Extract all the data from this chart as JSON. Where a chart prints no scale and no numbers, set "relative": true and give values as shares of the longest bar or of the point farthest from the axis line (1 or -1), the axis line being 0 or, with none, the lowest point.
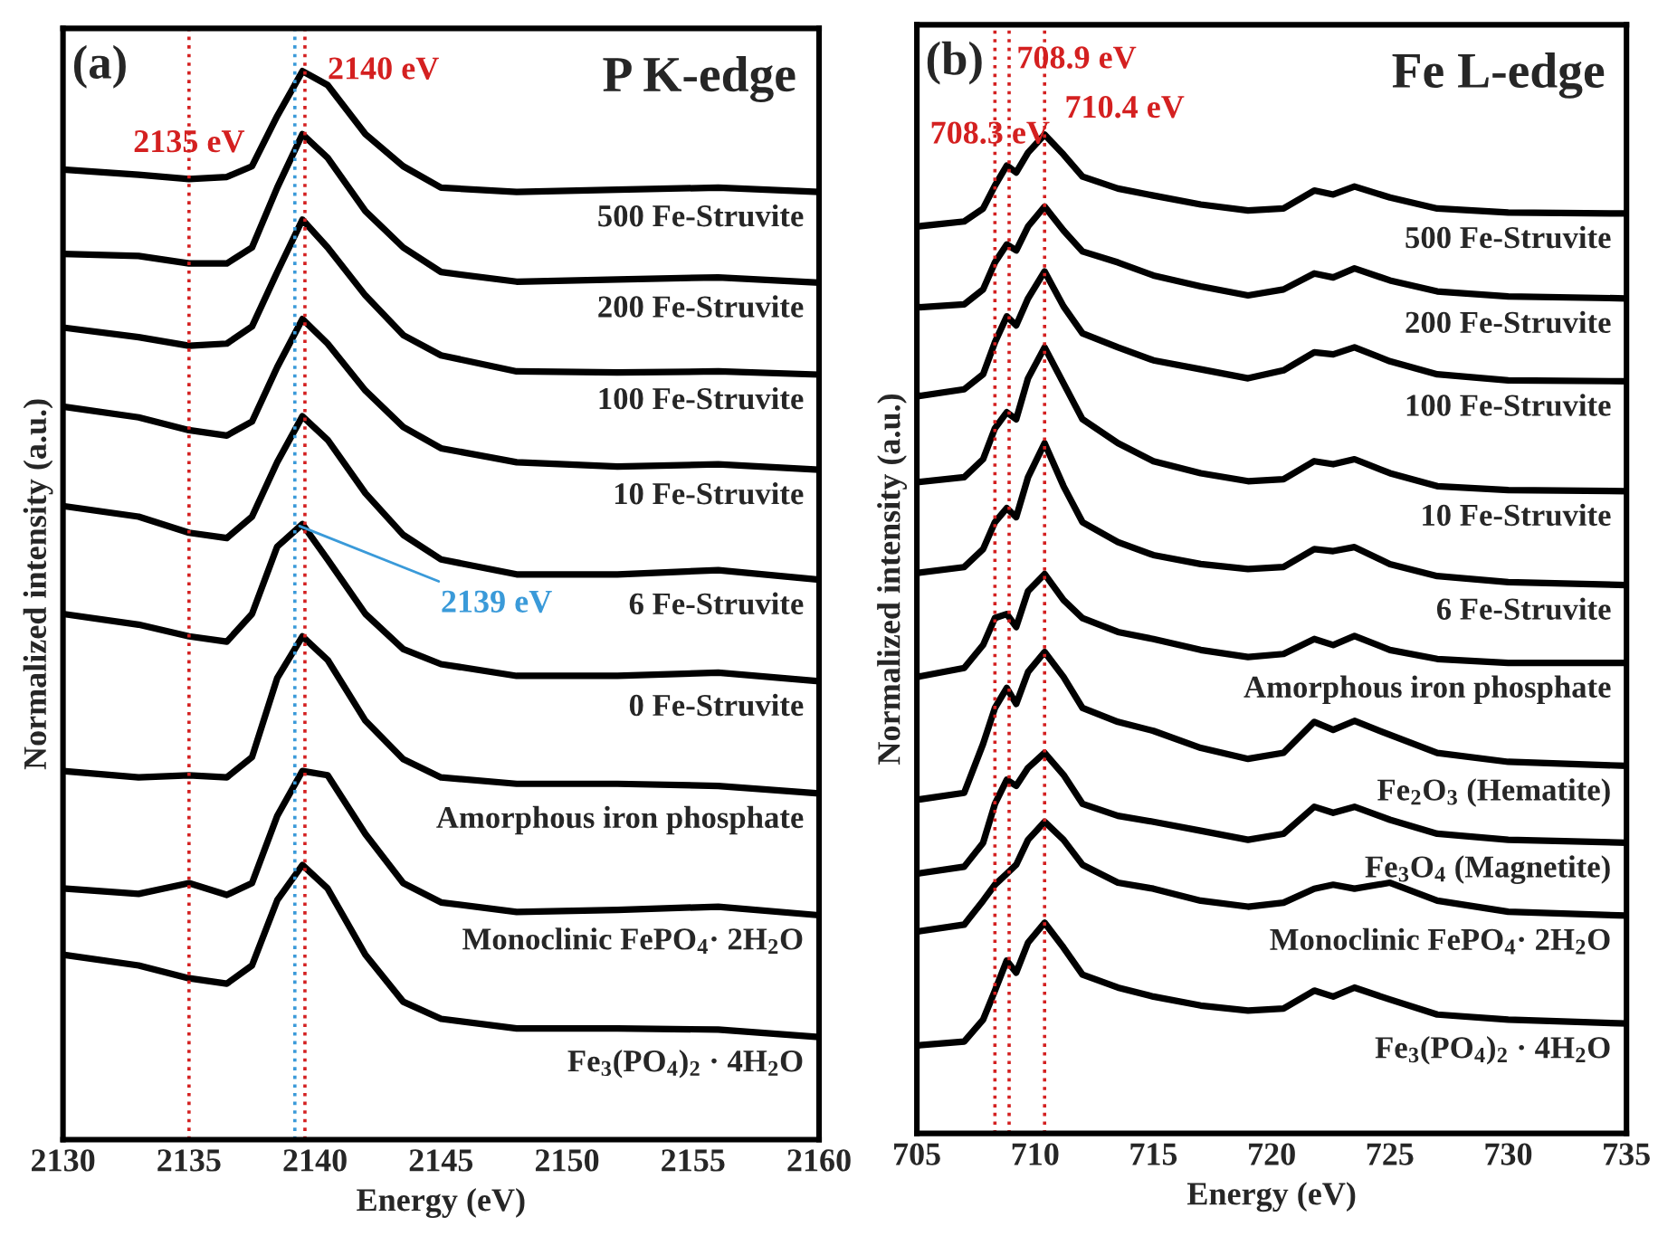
{
  "chart_data": [
    {
      "type": "line",
      "title": "P K-edge",
      "xlabel": "Energy (eV)",
      "ylabel": "Normalized intensity (a.u.)",
      "relative": true,
      "tick_labels": "x",
      "xlim": [
        2130,
        2160
      ],
      "xticks": [
        2130,
        2135,
        2140,
        2145,
        2150,
        2155,
        2160
      ],
      "x": [
        2130,
        2133,
        2135,
        2136.5,
        2137.5,
        2138.5,
        2139.5,
        2140.5,
        2142,
        2143.5,
        2145,
        2148,
        2152,
        2156,
        2160
      ],
      "series": [
        {
          "name": "500 Fe-Struvite",
          "color": "#000000",
          "values": [
            0.908,
            0.903,
            0.899,
            0.901,
            0.911,
            0.958,
            1,
            0.987,
            0.941,
            0.911,
            0.891,
            0.887,
            0.889,
            0.891,
            0.887
          ]
        },
        {
          "name": "200 Fe-Struvite",
          "color": "#000000",
          "values": [
            0.829,
            0.827,
            0.82,
            0.82,
            0.835,
            0.891,
            0.941,
            0.919,
            0.869,
            0.835,
            0.812,
            0.803,
            0.805,
            0.807,
            0.802
          ]
        },
        {
          "name": "100 Fe-Struvite",
          "color": "#000000",
          "values": [
            0.76,
            0.751,
            0.743,
            0.745,
            0.761,
            0.812,
            0.861,
            0.835,
            0.79,
            0.753,
            0.734,
            0.719,
            0.718,
            0.719,
            0.716
          ]
        },
        {
          "name": "10 Fe-Struvite",
          "color": "#000000",
          "values": [
            0.686,
            0.676,
            0.664,
            0.659,
            0.672,
            0.723,
            0.768,
            0.745,
            0.701,
            0.667,
            0.647,
            0.634,
            0.63,
            0.632,
            0.627
          ]
        },
        {
          "name": "6 Fe-Struvite",
          "color": "#000000",
          "values": [
            0.593,
            0.583,
            0.568,
            0.563,
            0.583,
            0.634,
            0.677,
            0.655,
            0.605,
            0.566,
            0.543,
            0.529,
            0.529,
            0.533,
            0.524
          ]
        },
        {
          "name": "0 Fe-Struvite",
          "color": "#000000",
          "values": [
            0.492,
            0.482,
            0.471,
            0.466,
            0.492,
            0.555,
            0.576,
            0.543,
            0.492,
            0.459,
            0.445,
            0.434,
            0.434,
            0.437,
            0.429
          ]
        },
        {
          "name": "Amorphous iron phosphate",
          "color": "#000000",
          "values": [
            0.345,
            0.339,
            0.341,
            0.339,
            0.358,
            0.432,
            0.471,
            0.449,
            0.392,
            0.356,
            0.339,
            0.333,
            0.333,
            0.331,
            0.324
          ]
        },
        {
          "name": "Monoclinic FePO$_{4}$· 2H$_{2}$O",
          "color": "#000000",
          "values": [
            0.235,
            0.23,
            0.24,
            0.229,
            0.24,
            0.303,
            0.345,
            0.341,
            0.286,
            0.24,
            0.222,
            0.213,
            0.215,
            0.218,
            0.21
          ]
        },
        {
          "name": "Fe$_{3}$(PO$_{4}$)$_{2}$ · 4H$_{2}$O",
          "color": "#000000",
          "values": [
            0.173,
            0.163,
            0.151,
            0.146,
            0.163,
            0.224,
            0.257,
            0.235,
            0.173,
            0.129,
            0.113,
            0.104,
            0.104,
            0.103,
            0.096
          ]
        }
      ],
      "ref_lines": [
        {
          "axis": "x",
          "value": 2135,
          "color": "#d42020",
          "line_style": "dotted"
        },
        {
          "axis": "x",
          "value": 2139.2,
          "color": "#3a9ad9",
          "line_style": "dotted"
        },
        {
          "axis": "x",
          "value": 2139.6,
          "color": "#d42020",
          "line_style": "dotted"
        }
      ],
      "annotations": [
        "(a)",
        {
          "text": "2135 eV",
          "x": 2135,
          "y": 0.899
        },
        {
          "text": "2140 eV",
          "x": 2139.6,
          "y": 1
        },
        {
          "text": "2139 eV",
          "x": 2139.2,
          "y": 0.576
        }
      ]
    },
    {
      "type": "line",
      "title": "Fe L-edge",
      "xlabel": "Energy (eV)",
      "ylabel": "Normalized intensity (a.u.)",
      "relative": true,
      "tick_labels": "x",
      "xlim": [
        705,
        735
      ],
      "xticks": [
        705,
        710,
        715,
        720,
        725,
        730,
        735
      ],
      "x": [
        705,
        707,
        707.8,
        708.3,
        708.8,
        709.2,
        709.7,
        710.4,
        711.2,
        712,
        713.5,
        715,
        717,
        719,
        720.5,
        721.8,
        722.6,
        723.5,
        725,
        727,
        730,
        735
      ],
      "series": [
        {
          "name": "500 Fe-Struvite",
          "color": "#000000",
          "values": [
            0.908,
            0.913,
            0.926,
            0.949,
            0.969,
            0.962,
            0.982,
            1,
            0.98,
            0.958,
            0.946,
            0.939,
            0.93,
            0.924,
            0.926,
            0.944,
            0.94,
            0.948,
            0.937,
            0.926,
            0.922,
            0.921
          ]
        },
        {
          "name": "200 Fe-Struvite",
          "color": "#000000",
          "values": [
            0.827,
            0.83,
            0.845,
            0.872,
            0.89,
            0.884,
            0.908,
            0.928,
            0.904,
            0.883,
            0.872,
            0.859,
            0.848,
            0.839,
            0.845,
            0.861,
            0.857,
            0.866,
            0.854,
            0.843,
            0.838,
            0.836
          ]
        },
        {
          "name": "100 Fe-Struvite",
          "color": "#000000",
          "values": [
            0.738,
            0.745,
            0.76,
            0.792,
            0.818,
            0.809,
            0.836,
            0.863,
            0.828,
            0.801,
            0.787,
            0.774,
            0.765,
            0.756,
            0.764,
            0.782,
            0.78,
            0.787,
            0.773,
            0.76,
            0.754,
            0.753
          ]
        },
        {
          "name": "10 Fe-Struvite",
          "color": "#000000",
          "values": [
            0.652,
            0.657,
            0.675,
            0.706,
            0.722,
            0.715,
            0.756,
            0.787,
            0.751,
            0.715,
            0.691,
            0.673,
            0.661,
            0.653,
            0.655,
            0.673,
            0.67,
            0.675,
            0.661,
            0.648,
            0.644,
            0.643
          ]
        },
        {
          "name": "6 Fe-Struvite",
          "color": "#000000",
          "values": [
            0.561,
            0.567,
            0.585,
            0.612,
            0.626,
            0.617,
            0.657,
            0.691,
            0.648,
            0.612,
            0.592,
            0.579,
            0.57,
            0.565,
            0.567,
            0.585,
            0.583,
            0.587,
            0.57,
            0.558,
            0.552,
            0.549
          ]
        },
        {
          "name": "Amorphous iron phosphate",
          "color": "#000000",
          "values": [
            0.457,
            0.466,
            0.489,
            0.516,
            0.52,
            0.507,
            0.543,
            0.56,
            0.534,
            0.516,
            0.502,
            0.495,
            0.484,
            0.477,
            0.48,
            0.495,
            0.489,
            0.498,
            0.484,
            0.475,
            0.471,
            0.471
          ]
        },
        {
          "name": "Fe$_{2}$O$_{3}$ (Hematite)",
          "color": "#000000",
          "values": [
            0.334,
            0.341,
            0.39,
            0.426,
            0.446,
            0.43,
            0.462,
            0.482,
            0.457,
            0.426,
            0.412,
            0.403,
            0.386,
            0.375,
            0.381,
            0.412,
            0.404,
            0.413,
            0.399,
            0.381,
            0.372,
            0.368
          ]
        },
        {
          "name": "Fe$_{3}$O$_{4}$ (Magnetite)",
          "color": "#000000",
          "values": [
            0.26,
            0.267,
            0.291,
            0.33,
            0.354,
            0.348,
            0.366,
            0.381,
            0.359,
            0.33,
            0.318,
            0.312,
            0.303,
            0.294,
            0.3,
            0.327,
            0.321,
            0.327,
            0.314,
            0.3,
            0.294,
            0.291
          ]
        },
        {
          "name": "Monoclinic FePO$_{4}$· 2H$_{2}$O",
          "color": "#000000",
          "values": [
            0.202,
            0.209,
            0.233,
            0.249,
            0.26,
            0.269,
            0.294,
            0.312,
            0.294,
            0.269,
            0.251,
            0.245,
            0.233,
            0.227,
            0.231,
            0.245,
            0.249,
            0.245,
            0.251,
            0.233,
            0.222,
            0.218
          ]
        },
        {
          "name": "Fe$_{3}$(PO$_{4}$)$_{2}$ · 4H$_{2}$O",
          "color": "#000000",
          "values": [
            0.088,
            0.092,
            0.114,
            0.143,
            0.173,
            0.161,
            0.191,
            0.211,
            0.186,
            0.159,
            0.146,
            0.137,
            0.128,
            0.123,
            0.125,
            0.143,
            0.137,
            0.146,
            0.134,
            0.119,
            0.114,
            0.11
          ]
        }
      ],
      "ref_lines": [
        {
          "axis": "x",
          "value": 708.3,
          "color": "#d42020",
          "line_style": "dotted"
        },
        {
          "axis": "x",
          "value": 708.9,
          "color": "#d42020",
          "line_style": "dotted"
        },
        {
          "axis": "x",
          "value": 710.4,
          "color": "#d42020",
          "line_style": "dotted"
        }
      ],
      "annotations": [
        "(b)",
        {
          "text": "708.3 eV",
          "x": 708.3,
          "y": 0.949
        },
        {
          "text": "708.9 eV",
          "x": 708.9,
          "y": 0.969
        },
        {
          "text": "710.4 eV",
          "x": 710.4,
          "y": 1
        }
      ]
    }
  ]
}
